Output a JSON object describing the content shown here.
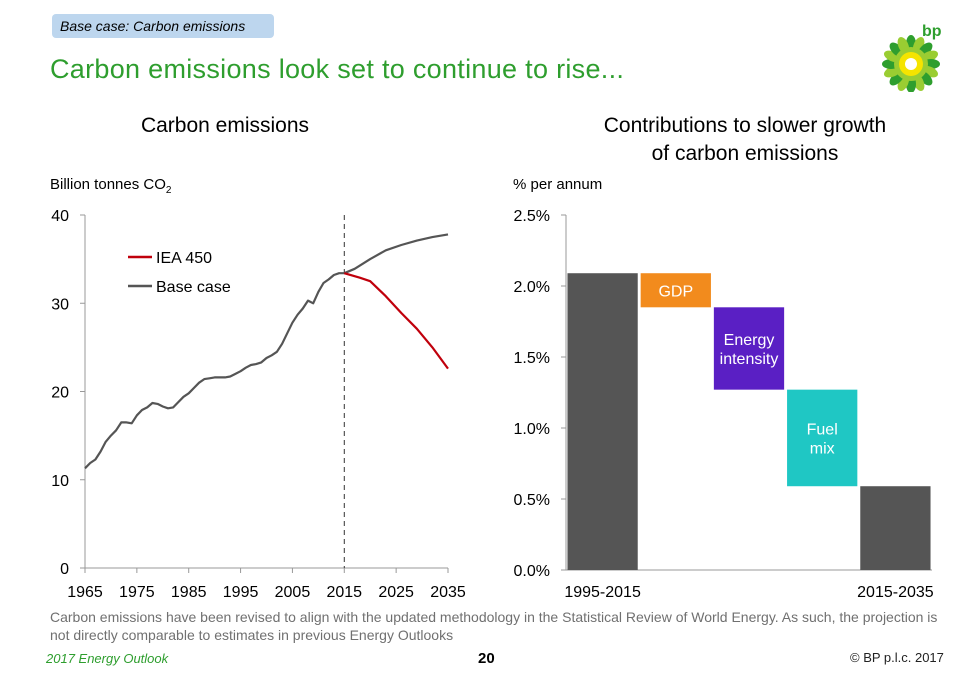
{
  "tag": "Base case: Carbon emissions",
  "headline": "Carbon emissions look set to continue to rise...",
  "logo_text": "bp",
  "colors": {
    "green": "#2e9e2e",
    "red": "#c0000c",
    "grey": "#555555",
    "gdp": "#f28b1d",
    "energy_intensity": "#5a1fc4",
    "fuel_mix": "#1fc7c4",
    "bar_grey": "#555555"
  },
  "note": "Carbon emissions have been revised to align with the updated methodology in the Statistical Review of World Energy. As such, the projection is not directly comparable to estimates in previous Energy Outlooks",
  "footer": {
    "left": "2017 Energy Outlook",
    "page": "20",
    "right": "© BP p.l.c. 2017"
  },
  "chart_data": [
    {
      "type": "line",
      "title": "Carbon emissions",
      "ylabel": "Billion tonnes CO",
      "ylabel_sub": "2",
      "xlim": [
        1965,
        2035
      ],
      "ylim": [
        0,
        40
      ],
      "x_ticks": [
        "1965",
        "1975",
        "1985",
        "1995",
        "2005",
        "2015",
        "2025",
        "2035"
      ],
      "y_ticks": [
        "0",
        "10",
        "20",
        "30",
        "40"
      ],
      "vline_x": 2015,
      "legend": "top-left",
      "series": [
        {
          "name": "Base case",
          "points": [
            [
              1965,
              11.3
            ],
            [
              1966,
              11.9
            ],
            [
              1967,
              12.3
            ],
            [
              1968,
              13.2
            ],
            [
              1969,
              14.3
            ],
            [
              1970,
              15.0
            ],
            [
              1971,
              15.6
            ],
            [
              1972,
              16.5
            ],
            [
              1973,
              16.5
            ],
            [
              1974,
              16.4
            ],
            [
              1975,
              17.3
            ],
            [
              1976,
              17.9
            ],
            [
              1977,
              18.2
            ],
            [
              1978,
              18.7
            ],
            [
              1979,
              18.6
            ],
            [
              1980,
              18.3
            ],
            [
              1981,
              18.1
            ],
            [
              1982,
              18.2
            ],
            [
              1983,
              18.8
            ],
            [
              1984,
              19.4
            ],
            [
              1985,
              19.8
            ],
            [
              1986,
              20.4
            ],
            [
              1987,
              21.0
            ],
            [
              1988,
              21.4
            ],
            [
              1989,
              21.5
            ],
            [
              1990,
              21.6
            ],
            [
              1991,
              21.6
            ],
            [
              1992,
              21.6
            ],
            [
              1993,
              21.7
            ],
            [
              1994,
              22.0
            ],
            [
              1995,
              22.3
            ],
            [
              1996,
              22.7
            ],
            [
              1997,
              23.0
            ],
            [
              1998,
              23.1
            ],
            [
              1999,
              23.3
            ],
            [
              2000,
              23.8
            ],
            [
              2001,
              24.1
            ],
            [
              2002,
              24.5
            ],
            [
              2003,
              25.4
            ],
            [
              2004,
              26.6
            ],
            [
              2005,
              27.8
            ],
            [
              2006,
              28.7
            ],
            [
              2007,
              29.4
            ],
            [
              2008,
              30.3
            ],
            [
              2009,
              30.0
            ],
            [
              2010,
              31.3
            ],
            [
              2011,
              32.3
            ],
            [
              2012,
              32.7
            ],
            [
              2013,
              33.2
            ],
            [
              2014,
              33.4
            ],
            [
              2015,
              33.4
            ],
            [
              2017,
              33.9
            ],
            [
              2020,
              35.0
            ],
            [
              2023,
              36.0
            ],
            [
              2026,
              36.6
            ],
            [
              2029,
              37.1
            ],
            [
              2032,
              37.5
            ],
            [
              2035,
              37.8
            ]
          ]
        },
        {
          "name": "IEA 450",
          "points": [
            [
              2015,
              33.4
            ],
            [
              2018,
              32.9
            ],
            [
              2020,
              32.5
            ],
            [
              2023,
              30.8
            ],
            [
              2026,
              28.9
            ],
            [
              2029,
              27.1
            ],
            [
              2032,
              25.0
            ],
            [
              2035,
              22.6
            ]
          ]
        }
      ]
    },
    {
      "type": "bar",
      "subtype": "waterfall",
      "title_lines": [
        "Contributions to slower growth",
        "of carbon emissions"
      ],
      "ylabel": "% per annum",
      "ylim": [
        0,
        2.5
      ],
      "y_ticks": [
        "0.0%",
        "0.5%",
        "1.0%",
        "1.5%",
        "2.0%",
        "2.5%"
      ],
      "x_labels": [
        "1995-2015",
        "2015-2035"
      ],
      "bars": [
        {
          "label": "",
          "low": 0.0,
          "high": 2.09,
          "color_key": "bar_grey"
        },
        {
          "label": "GDP",
          "low": 1.85,
          "high": 2.09,
          "color_key": "gdp"
        },
        {
          "label": "Energy intensity",
          "low": 1.27,
          "high": 1.85,
          "color_key": "energy_intensity"
        },
        {
          "label": "Fuel mix",
          "low": 0.59,
          "high": 1.27,
          "color_key": "fuel_mix"
        },
        {
          "label": "",
          "low": 0.0,
          "high": 0.59,
          "color_key": "bar_grey"
        }
      ]
    }
  ]
}
